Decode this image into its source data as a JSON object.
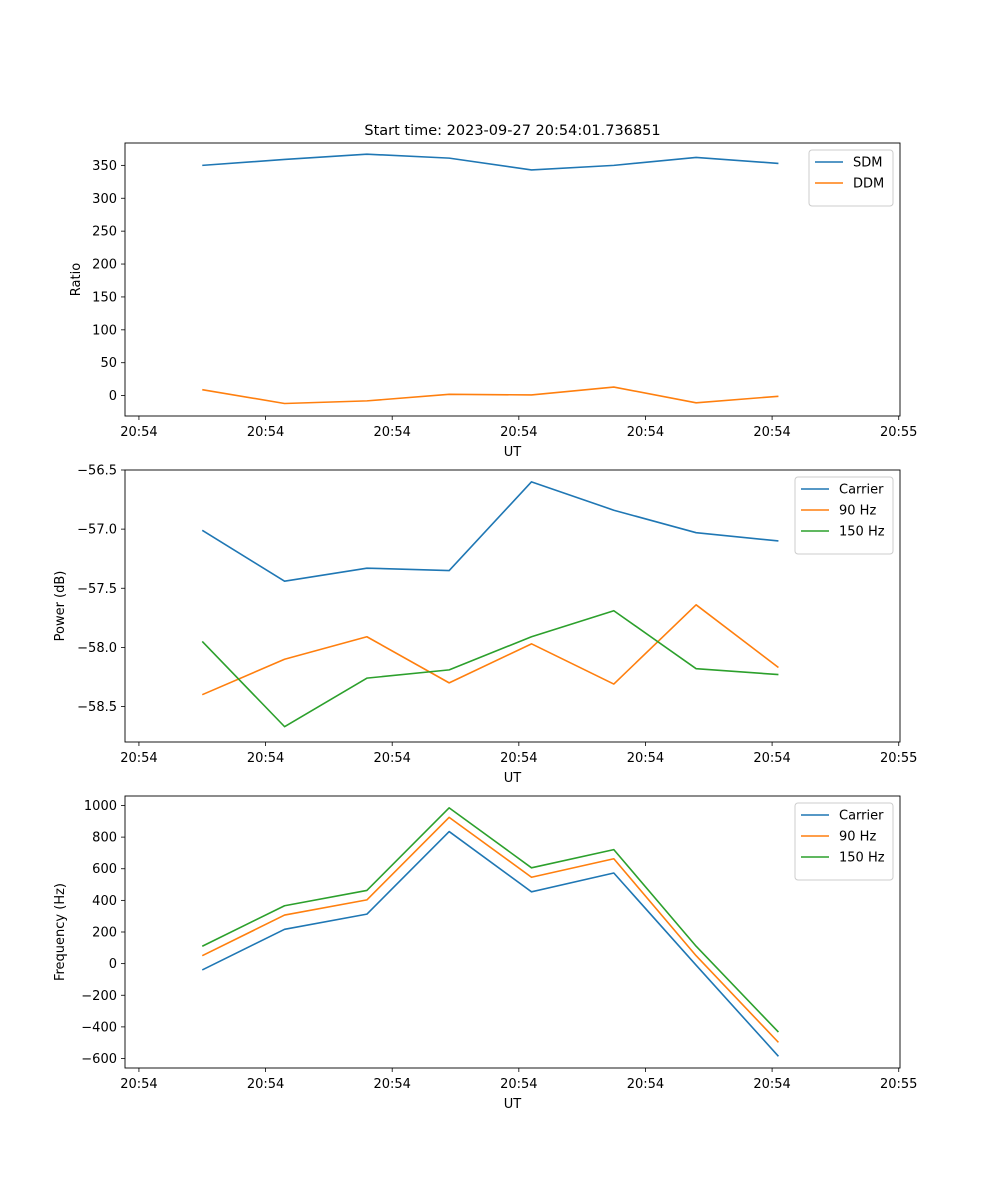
{
  "figure": {
    "title": "Start time: 2023-09-27 20:54:01.736851"
  },
  "chart_data": [
    {
      "type": "line",
      "title": "Start time: 2023-09-27 20:54:01.736851",
      "xlabel": "UT",
      "ylabel": "Ratio",
      "x_tick_labels": [
        "20:54",
        "20:54",
        "20:54",
        "20:54",
        "20:54",
        "20:54",
        "20:55"
      ],
      "x_tick_values": [
        0,
        1,
        2,
        3,
        4,
        5,
        6
      ],
      "xlim": [
        -0.11,
        6.01
      ],
      "x": [
        0.5,
        1.15,
        1.8,
        2.45,
        3.1,
        3.75,
        4.4,
        5.05
      ],
      "ylim": [
        -31,
        384
      ],
      "y_ticks": [
        0,
        50,
        100,
        150,
        200,
        250,
        300,
        350
      ],
      "legend": "upper right",
      "series": [
        {
          "name": "SDM",
          "color": "#1f77b4",
          "values": [
            350,
            359,
            367,
            361,
            343,
            350,
            362,
            353
          ]
        },
        {
          "name": "DDM",
          "color": "#ff7f0e",
          "values": [
            9,
            -12,
            -8,
            2,
            1,
            13,
            -11,
            -1
          ]
        }
      ]
    },
    {
      "type": "line",
      "title": "",
      "xlabel": "UT",
      "ylabel": "Power (dB)",
      "x_tick_labels": [
        "20:54",
        "20:54",
        "20:54",
        "20:54",
        "20:54",
        "20:54",
        "20:55"
      ],
      "x_tick_values": [
        0,
        1,
        2,
        3,
        4,
        5,
        6
      ],
      "xlim": [
        -0.11,
        6.01
      ],
      "x": [
        0.5,
        1.15,
        1.8,
        2.45,
        3.1,
        3.75,
        4.4,
        5.05
      ],
      "ylim": [
        -58.8,
        -56.5
      ],
      "y_ticks": [
        -58.5,
        -58.0,
        -57.5,
        -57.0,
        -56.5
      ],
      "y_tick_labels": [
        "−58.5",
        "−58.0",
        "−57.5",
        "−57.0",
        "−56.5"
      ],
      "legend": "upper right",
      "series": [
        {
          "name": "Carrier",
          "color": "#1f77b4",
          "values": [
            -57.01,
            -57.44,
            -57.33,
            -57.35,
            -56.6,
            -56.84,
            -57.03,
            -57.1
          ]
        },
        {
          "name": "90 Hz",
          "color": "#ff7f0e",
          "values": [
            -58.4,
            -58.1,
            -57.91,
            -58.3,
            -57.97,
            -58.31,
            -57.64,
            -58.17
          ]
        },
        {
          "name": "150 Hz",
          "color": "#2ca02c",
          "values": [
            -57.95,
            -58.67,
            -58.26,
            -58.19,
            -57.91,
            -57.69,
            -58.18,
            -58.23
          ]
        }
      ]
    },
    {
      "type": "line",
      "title": "",
      "xlabel": "UT",
      "ylabel": "Frequency (Hz)",
      "x_tick_labels": [
        "20:54",
        "20:54",
        "20:54",
        "20:54",
        "20:54",
        "20:54",
        "20:55"
      ],
      "x_tick_values": [
        0,
        1,
        2,
        3,
        4,
        5,
        6
      ],
      "xlim": [
        -0.11,
        6.01
      ],
      "x": [
        0.5,
        1.15,
        1.8,
        2.45,
        3.1,
        3.75,
        4.4,
        5.05
      ],
      "ylim": [
        -660,
        1060
      ],
      "y_ticks": [
        -600,
        -400,
        -200,
        0,
        200,
        400,
        600,
        800,
        1000
      ],
      "y_tick_labels": [
        "−600",
        "−400",
        "−200",
        "0",
        "200",
        "400",
        "600",
        "800",
        "1000"
      ],
      "legend": "upper right",
      "series": [
        {
          "name": "Carrier",
          "color": "#1f77b4",
          "values": [
            -40,
            217,
            313,
            835,
            454,
            573,
            -10,
            -586
          ]
        },
        {
          "name": "90 Hz",
          "color": "#ff7f0e",
          "values": [
            50,
            307,
            403,
            925,
            546,
            663,
            50,
            -498
          ]
        },
        {
          "name": "150 Hz",
          "color": "#2ca02c",
          "values": [
            110,
            366,
            463,
            985,
            606,
            721,
            110,
            -433
          ]
        }
      ]
    }
  ]
}
